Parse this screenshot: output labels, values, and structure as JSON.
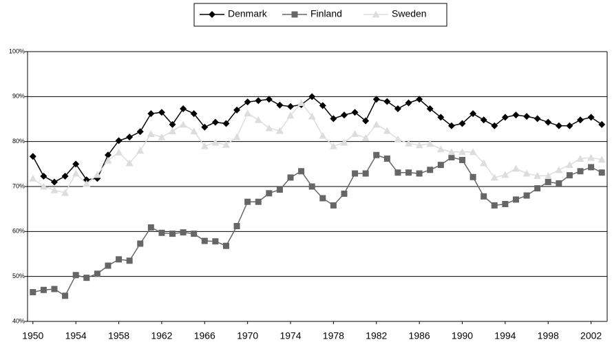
{
  "chart_data": {
    "type": "line",
    "x": [
      1950,
      1951,
      1952,
      1953,
      1954,
      1955,
      1956,
      1957,
      1958,
      1959,
      1960,
      1961,
      1962,
      1963,
      1964,
      1965,
      1966,
      1967,
      1968,
      1969,
      1970,
      1971,
      1972,
      1973,
      1974,
      1975,
      1976,
      1977,
      1978,
      1979,
      1980,
      1981,
      1982,
      1983,
      1984,
      1985,
      1986,
      1987,
      1988,
      1989,
      1990,
      1991,
      1992,
      1993,
      1994,
      1995,
      1996,
      1997,
      1998,
      1999,
      2000,
      2001,
      2002,
      2003
    ],
    "series": [
      {
        "name": "Denmark",
        "color": "#000000",
        "marker": "diamond",
        "values": [
          76.7,
          72.3,
          71,
          72.3,
          75,
          71.5,
          71.8,
          77,
          80.2,
          81,
          82.2,
          86.2,
          86.5,
          83.8,
          87.3,
          86.2,
          83.2,
          84.3,
          84,
          87,
          88.8,
          89.1,
          89.4,
          88.1,
          87.8,
          88.2,
          90,
          88,
          85.1,
          85.9,
          86.5,
          84.6,
          89.4,
          88.9,
          87.3,
          88.6,
          89.4,
          87.3,
          85.4,
          83.5,
          84,
          86.2,
          84.8,
          83.5,
          85.4,
          85.9,
          85.6,
          85.1,
          84.3,
          83.5,
          83.5,
          84.8,
          85.4,
          83.8
        ]
      },
      {
        "name": "Finland",
        "color": "#666666",
        "marker": "square",
        "values": [
          46.5,
          47,
          47.2,
          45.7,
          50.3,
          49.7,
          50.6,
          52.4,
          53.8,
          53.5,
          57.3,
          60.9,
          59.7,
          59.5,
          59.8,
          59.5,
          57.9,
          57.8,
          56.8,
          61.2,
          66.6,
          66.6,
          68.5,
          69.3,
          72,
          73.4,
          70,
          67.4,
          65.8,
          68.4,
          72.9,
          72.9,
          77,
          76.2,
          73.1,
          73.1,
          72.9,
          73.7,
          74.8,
          76.5,
          75.9,
          72.1,
          67.8,
          65.8,
          66.1,
          67.1,
          68,
          69.6,
          71,
          70.7,
          72.5,
          73.4,
          74.3,
          73.1
        ]
      },
      {
        "name": "Sweden",
        "color": "#dddddd",
        "marker": "triangle",
        "values": [
          71.8,
          70,
          69.2,
          68.6,
          72.9,
          70.6,
          72.6,
          75.8,
          77.6,
          75.2,
          78,
          81.7,
          81,
          82.3,
          83.8,
          82.3,
          79,
          79.8,
          79.3,
          81,
          86.3,
          84.8,
          83,
          82.4,
          85.8,
          88.6,
          85.6,
          81.3,
          79,
          79.8,
          81.7,
          80.8,
          83.8,
          82.4,
          80.5,
          79.6,
          79.2,
          79.5,
          78.3,
          77.7,
          77.7,
          77.7,
          75.2,
          72,
          72.6,
          74,
          72.9,
          72.4,
          72.4,
          73.7,
          74.8,
          76.2,
          76.4,
          76
        ]
      }
    ],
    "xlim": [
      1949.5,
      2003.5
    ],
    "xticks": [
      1950,
      1954,
      1958,
      1962,
      1966,
      1970,
      1974,
      1978,
      1982,
      1986,
      1990,
      1994,
      1998,
      2002
    ],
    "ylim": [
      40,
      100
    ],
    "yticks": [
      {
        "value": 40,
        "label": "40%"
      },
      {
        "value": 50,
        "label": "50%"
      },
      {
        "value": 60,
        "label": "60%"
      },
      {
        "value": 70,
        "label": "70%"
      },
      {
        "value": 80,
        "label": "80%"
      },
      {
        "value": 90,
        "label": "90%"
      },
      {
        "value": 100,
        "label": "100%"
      }
    ],
    "grid": true,
    "legend": "top"
  }
}
